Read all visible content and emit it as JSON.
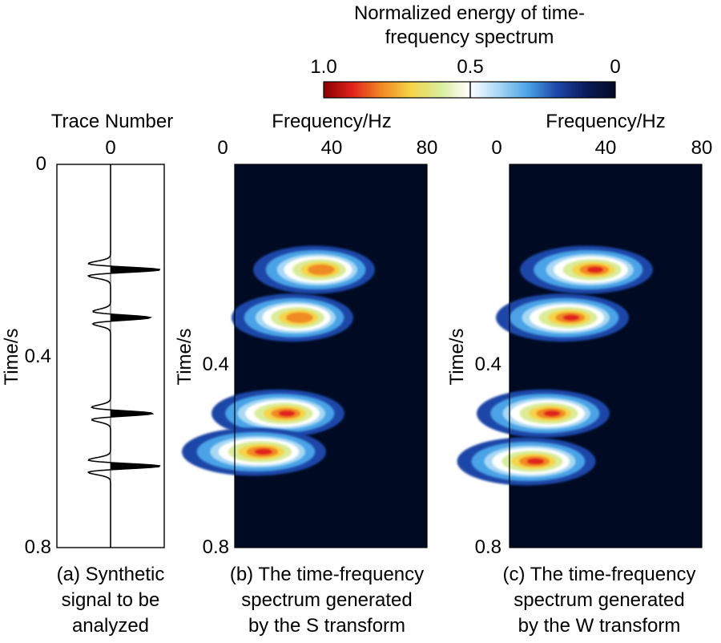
{
  "colorbar": {
    "title_line1": "Normalized energy of time-",
    "title_line2": "frequency spectrum",
    "tick_labels": [
      "1.0",
      "0.5",
      "0"
    ],
    "tick_values": [
      1.0,
      0.5,
      0
    ],
    "colormap": [
      "#8b0000",
      "#e0241b",
      "#f08a24",
      "#f4d548",
      "#d9ec9a",
      "#ffffff",
      "#a8d8f4",
      "#4aa3e6",
      "#1c47a8",
      "#0a1a5a",
      "#000a22"
    ]
  },
  "chart_data": [
    {
      "type": "line",
      "caption_lines": [
        "(a) Synthetic",
        "signal to be",
        "analyzed"
      ],
      "xlabel": "Trace Number",
      "ylabel": "Time/s",
      "x_ticks": [
        "0"
      ],
      "y_ticks": [
        "0",
        "0.4",
        "0.8"
      ],
      "ylim": [
        0,
        0.8
      ],
      "events": [
        {
          "time": 0.22,
          "amplitude": 1.0
        },
        {
          "time": 0.32,
          "amplitude": 0.8
        },
        {
          "time": 0.52,
          "amplitude": 0.85
        },
        {
          "time": 0.63,
          "amplitude": 1.0
        }
      ]
    },
    {
      "type": "heatmap",
      "caption_lines": [
        "(b) The time-frequency",
        "spectrum generated",
        "by the S transform"
      ],
      "xlabel": "Frequency/Hz",
      "ylabel": "Time/s",
      "x_ticks": [
        "0",
        "40",
        "80"
      ],
      "y_ticks": [
        "0",
        "0.4",
        "0.8"
      ],
      "xlim": [
        0,
        80
      ],
      "ylim": [
        0,
        0.8
      ],
      "blobs": [
        {
          "time": 0.22,
          "freq": 33,
          "energy": 0.8
        },
        {
          "time": 0.32,
          "freq": 24,
          "energy": 0.8
        },
        {
          "time": 0.52,
          "freq": 18,
          "energy": 0.9
        },
        {
          "time": 0.6,
          "freq": 8,
          "energy": 1.0
        }
      ]
    },
    {
      "type": "heatmap",
      "caption_lines": [
        "(c) The time-frequency",
        "spectrum generated",
        "by the W transform"
      ],
      "xlabel": "Frequency/Hz",
      "ylabel": "Time/s",
      "x_ticks": [
        "0",
        "40",
        "80"
      ],
      "y_ticks": [
        "0",
        "0.4",
        "0.8"
      ],
      "xlim": [
        0,
        80
      ],
      "ylim": [
        0,
        0.8
      ],
      "blobs": [
        {
          "time": 0.22,
          "freq": 32,
          "energy": 0.9
        },
        {
          "time": 0.32,
          "freq": 22,
          "energy": 0.9
        },
        {
          "time": 0.52,
          "freq": 14,
          "energy": 0.9
        },
        {
          "time": 0.62,
          "freq": 7,
          "energy": 0.95
        }
      ]
    }
  ]
}
